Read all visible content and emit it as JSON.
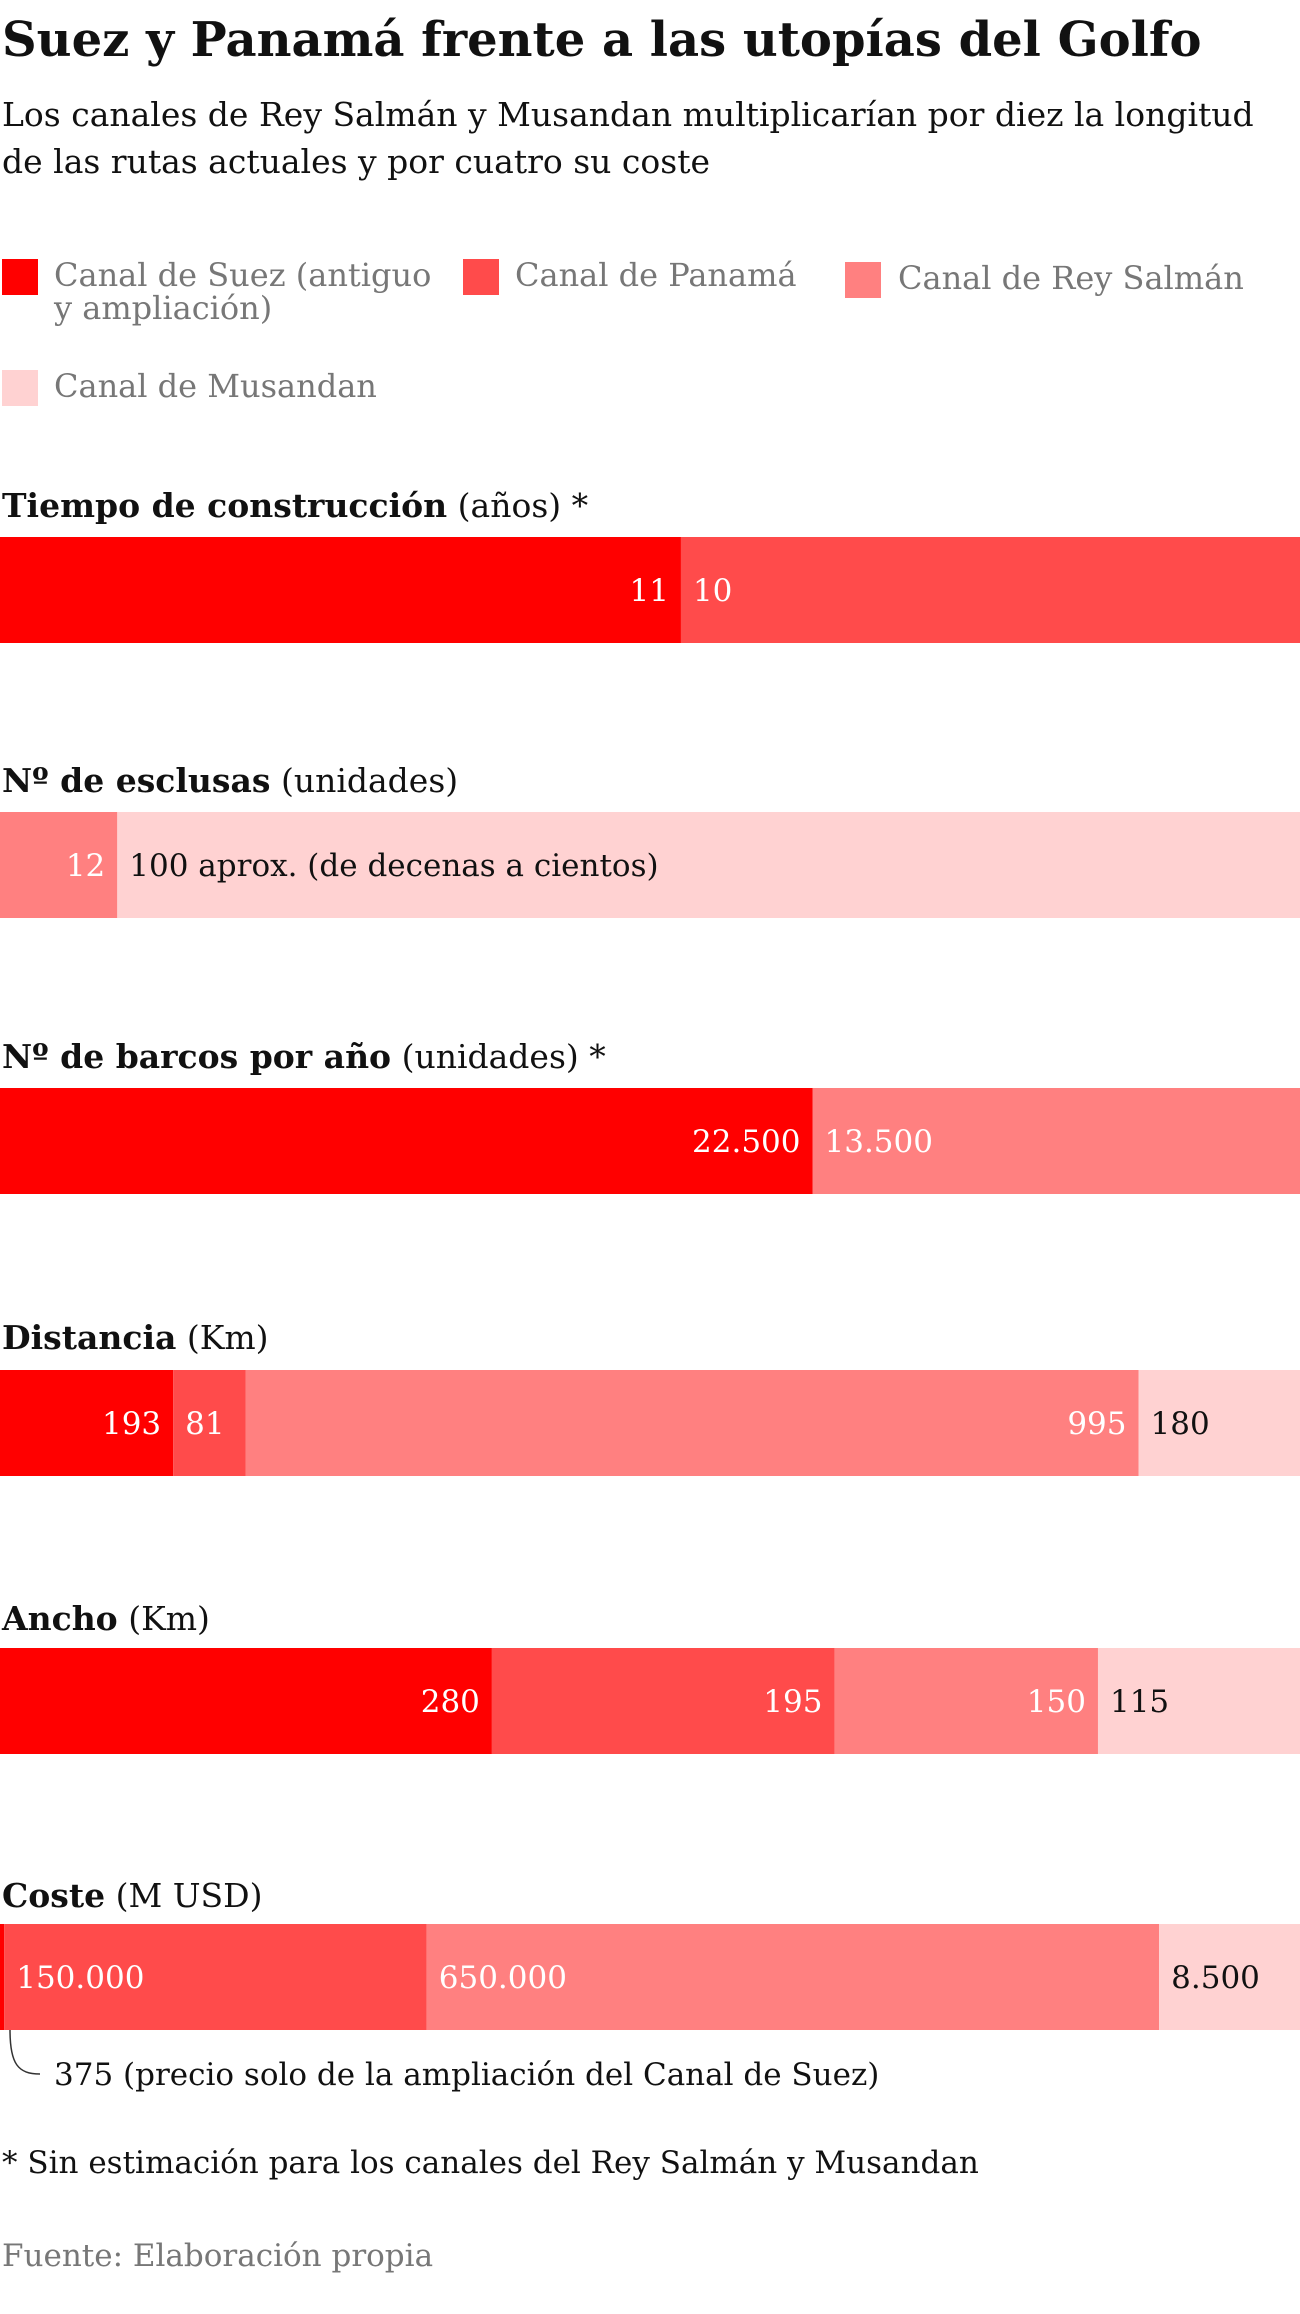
{
  "title": "Suez y Panamá frente a las utopías del Golfo",
  "subtitle_lines": [
    "Los canales de Rey Salmán y Musandan multiplicarían por diez la longitud",
    "de las rutas actuales y por cuatro su coste"
  ],
  "legend": [
    {
      "label_lines": [
        "Canal de Suez (antiguo",
        "y ampliación)"
      ],
      "color": "#ff0000"
    },
    {
      "label_lines": [
        "Canal de Panamá"
      ],
      "color": "#ff4b4b"
    },
    {
      "label_lines": [
        "Canal de Rey Salmán"
      ],
      "color": "#ff8080"
    },
    {
      "label_lines": [
        "Canal de Musandan"
      ],
      "color": "#ffd2d2"
    }
  ],
  "footnote": "* Sin estimación para los canales del Rey Salmán y Musandan",
  "source": "Fuente: Elaboración propia",
  "chart_data": {
    "type": "bar",
    "orientation": "horizontal-stacked-100",
    "series_names": [
      "Canal de Suez (antiguo y ampliación)",
      "Canal de Panamá",
      "Canal de Rey Salmán",
      "Canal de Musandan"
    ],
    "colors": [
      "#ff0000",
      "#ff4b4b",
      "#ff8080",
      "#ffd2d2"
    ],
    "panels": [
      {
        "title_bold": "Tiempo de construcción",
        "title_rest": " (años) *",
        "segments": [
          {
            "series": 0,
            "value": 11,
            "label": "11",
            "label_pos": "inside-end",
            "label_color": "#ffffff"
          },
          {
            "series": 1,
            "value": 10,
            "label": "10",
            "label_pos": "inside-start",
            "label_color": "#ffffff"
          }
        ]
      },
      {
        "title_bold": "Nº de esclusas",
        "title_rest": " (unidades)",
        "segments": [
          {
            "series": 2,
            "value": 12,
            "label": "12",
            "label_pos": "inside-end",
            "label_color": "#ffffff"
          },
          {
            "series": 3,
            "value": 100,
            "weight": 121,
            "label": "100 aprox. (de decenas a cientos)",
            "label_pos": "inside-start",
            "label_color": "#111111"
          }
        ]
      },
      {
        "title_bold": "Nº de barcos por año",
        "title_rest": " (unidades) *",
        "segments": [
          {
            "series": 0,
            "value": 22500,
            "label": "22.500",
            "label_pos": "inside-end",
            "label_color": "#ffffff"
          },
          {
            "series": 2,
            "value": 13500,
            "label": "13.500",
            "label_pos": "inside-start",
            "label_color": "#ffffff"
          }
        ]
      },
      {
        "title_bold": "Distancia",
        "title_rest": " (Km)",
        "segments": [
          {
            "series": 0,
            "value": 193,
            "label": "193",
            "label_pos": "inside-end",
            "label_color": "#ffffff"
          },
          {
            "series": 1,
            "value": 81,
            "label": "81",
            "label_pos": "inside-start",
            "label_color": "#ffffff"
          },
          {
            "series": 2,
            "value": 995,
            "label": "995",
            "label_pos": "inside-end",
            "label_color": "#ffffff"
          },
          {
            "series": 3,
            "value": 180,
            "label": "180",
            "label_pos": "inside-start",
            "label_color": "#111111"
          }
        ]
      },
      {
        "title_bold": "Ancho",
        "title_rest": " (Km)",
        "segments": [
          {
            "series": 0,
            "value": 280,
            "label": "280",
            "label_pos": "inside-end",
            "label_color": "#ffffff"
          },
          {
            "series": 1,
            "value": 195,
            "label": "195",
            "label_pos": "inside-end",
            "label_color": "#ffffff"
          },
          {
            "series": 2,
            "value": 150,
            "label": "150",
            "label_pos": "inside-end",
            "label_color": "#ffffff"
          },
          {
            "series": 3,
            "value": 115,
            "label": "115",
            "label_pos": "inside-start",
            "label_color": "#111111"
          }
        ]
      },
      {
        "title_bold": "Coste",
        "title_rest": " (M USD)",
        "segments": [
          {
            "series": 0,
            "value": 375,
            "weight": 1500,
            "label": "",
            "label_pos": "none",
            "label_color": "#ffffff"
          },
          {
            "series": 1,
            "value": 150000,
            "label": "150.000",
            "label_pos": "inside-start",
            "label_color": "#ffffff"
          },
          {
            "series": 2,
            "value": 650000,
            "weight": 260000,
            "label": "650.000",
            "label_pos": "inside-start",
            "label_color": "#ffffff"
          },
          {
            "series": 3,
            "value": 8500,
            "weight": 50000,
            "label": "8.500",
            "label_pos": "inside-start",
            "label_color": "#111111"
          }
        ],
        "annotation": "375 (precio solo de la ampliación del Canal de Suez)"
      }
    ]
  }
}
